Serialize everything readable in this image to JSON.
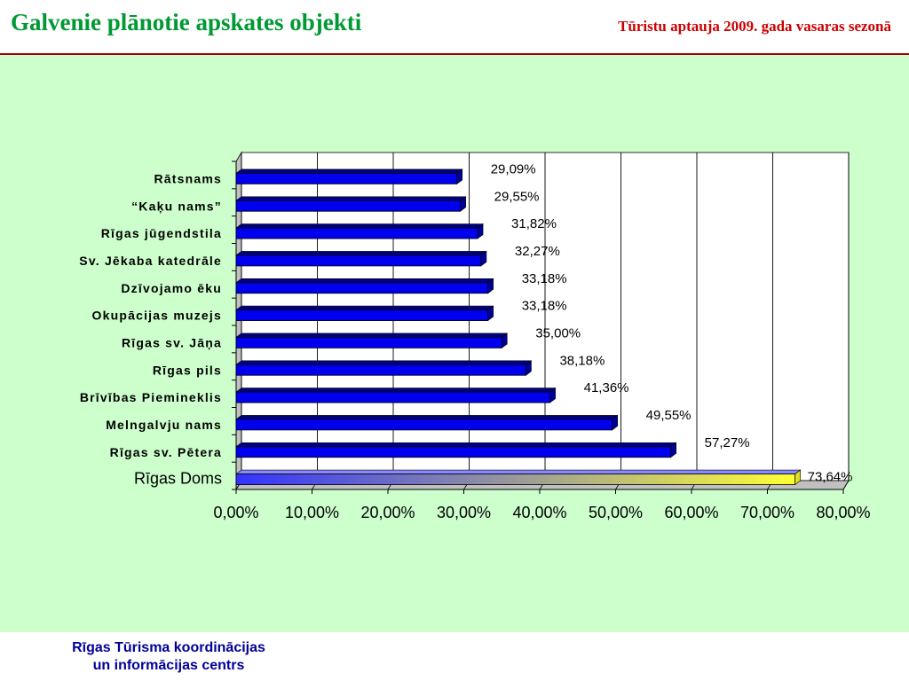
{
  "header": {
    "title": "Galvenie plānotie apskates objekti",
    "subtitle": "Tūristu aptauja 2009. gada vasaras sezonā"
  },
  "footer": {
    "line1": "Rīgas Tūrisma koordinācijas",
    "line2": "un informācijas centrs"
  },
  "colors": {
    "title": "#009933",
    "subtitle": "#cc0000",
    "background": "#ccffcc",
    "bar": "#0000ee",
    "highlight_gradient": [
      "#3333ff",
      "#ffff33"
    ],
    "footer": "#000099"
  },
  "chart_data": {
    "type": "bar",
    "orientation": "horizontal",
    "categories": [
      "Rātsnams",
      "“Kaķu nams”",
      "Rīgas jūgendstila",
      "Sv. Jēkaba katedrāle",
      "Dzīvojamo ēku",
      "Okupācijas muzejs",
      "Rīgas sv. Jāņa",
      "Rīgas pils",
      "Brīvības Piemineklis",
      "Melngalvju nams",
      "Rīgas sv. Pētera",
      "Rīgas Doms"
    ],
    "values": [
      29.09,
      29.55,
      31.82,
      32.27,
      33.18,
      33.18,
      35.0,
      38.18,
      41.36,
      49.55,
      57.27,
      73.64
    ],
    "data_labels": [
      "29,09%",
      "29,55%",
      "31,82%",
      "32,27%",
      "33,18%",
      "33,18%",
      "35,00%",
      "38,18%",
      "41,36%",
      "49,55%",
      "57,27%",
      "73,64%"
    ],
    "highlight_index": 11,
    "x_ticks": [
      0,
      10,
      20,
      30,
      40,
      50,
      60,
      70,
      80
    ],
    "x_tick_labels": [
      "0,00%",
      "10,00%",
      "20,00%",
      "30,00%",
      "40,00%",
      "50,00%",
      "60,00%",
      "70,00%",
      "80,00%"
    ],
    "xlim": [
      0,
      80
    ],
    "grid": "vertical",
    "legend": "none",
    "three_d": true
  }
}
